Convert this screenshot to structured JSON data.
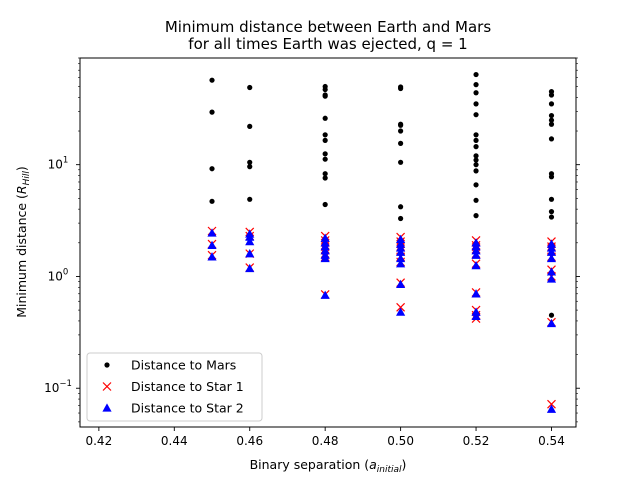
{
  "chart_data": {
    "type": "scatter",
    "title_line1": "Minimum distance between Earth and Mars",
    "title_line2": "for all times Earth was ejected, q = 1",
    "xlabel_main": "Binary separation (",
    "xlabel_var": "a",
    "xlabel_sub": "initial",
    "xlabel_close": ")",
    "ylabel_main": "Minimum distance (",
    "ylabel_var": "R",
    "ylabel_sub": "Hill",
    "ylabel_close": ")",
    "xlim": [
      0.415,
      0.5465
    ],
    "ylim": [
      0.045,
      90
    ],
    "yscale": "log",
    "x_ticks": [
      {
        "value": 0.42,
        "label": "0.42"
      },
      {
        "value": 0.44,
        "label": "0.44"
      },
      {
        "value": 0.46,
        "label": "0.46"
      },
      {
        "value": 0.48,
        "label": "0.48"
      },
      {
        "value": 0.5,
        "label": "0.50"
      },
      {
        "value": 0.52,
        "label": "0.52"
      },
      {
        "value": 0.54,
        "label": "0.54"
      }
    ],
    "y_ticks": [
      {
        "value": 0.1,
        "base": "10",
        "exp": "−1"
      },
      {
        "value": 1,
        "base": "10",
        "exp": "0"
      },
      {
        "value": 10,
        "base": "10",
        "exp": "1"
      }
    ],
    "legend_position": "lower-left",
    "series": [
      {
        "name": "Distance to Mars",
        "marker": "dot",
        "color": "#000000",
        "points": [
          [
            0.45,
            57
          ],
          [
            0.45,
            29.5
          ],
          [
            0.45,
            9.2
          ],
          [
            0.45,
            4.7
          ],
          [
            0.46,
            49
          ],
          [
            0.46,
            22
          ],
          [
            0.46,
            10.5
          ],
          [
            0.46,
            9.6
          ],
          [
            0.46,
            4.9
          ],
          [
            0.48,
            50
          ],
          [
            0.48,
            47
          ],
          [
            0.48,
            42
          ],
          [
            0.48,
            41
          ],
          [
            0.48,
            26
          ],
          [
            0.48,
            18.5
          ],
          [
            0.48,
            16.5
          ],
          [
            0.48,
            12.5
          ],
          [
            0.48,
            11.2
          ],
          [
            0.48,
            8.3
          ],
          [
            0.48,
            7.6
          ],
          [
            0.48,
            4.4
          ],
          [
            0.5,
            49.5
          ],
          [
            0.5,
            48
          ],
          [
            0.5,
            23
          ],
          [
            0.5,
            22.5
          ],
          [
            0.5,
            20
          ],
          [
            0.5,
            15.5
          ],
          [
            0.5,
            10.5
          ],
          [
            0.5,
            4.2
          ],
          [
            0.5,
            3.3
          ],
          [
            0.52,
            64
          ],
          [
            0.52,
            52
          ],
          [
            0.52,
            44
          ],
          [
            0.52,
            35
          ],
          [
            0.52,
            28
          ],
          [
            0.52,
            18.5
          ],
          [
            0.52,
            16.5
          ],
          [
            0.52,
            14.5
          ],
          [
            0.52,
            12
          ],
          [
            0.52,
            11
          ],
          [
            0.52,
            10
          ],
          [
            0.52,
            8.8
          ],
          [
            0.52,
            6.6
          ],
          [
            0.52,
            4.8
          ],
          [
            0.52,
            3.5
          ],
          [
            0.54,
            45
          ],
          [
            0.54,
            42
          ],
          [
            0.54,
            35
          ],
          [
            0.54,
            27.5
          ],
          [
            0.54,
            25
          ],
          [
            0.54,
            23
          ],
          [
            0.54,
            17
          ],
          [
            0.54,
            8.3
          ],
          [
            0.54,
            7.8
          ],
          [
            0.54,
            4.9
          ],
          [
            0.54,
            3.8
          ],
          [
            0.54,
            3.4
          ],
          [
            0.54,
            0.45
          ]
        ]
      },
      {
        "name": "Distance to Star 1",
        "marker": "x",
        "color": "#ff0000",
        "points": [
          [
            0.45,
            2.55
          ],
          [
            0.45,
            1.95
          ],
          [
            0.45,
            1.55
          ],
          [
            0.46,
            2.5
          ],
          [
            0.46,
            2.3
          ],
          [
            0.46,
            1.6
          ],
          [
            0.46,
            1.2
          ],
          [
            0.48,
            2.3
          ],
          [
            0.48,
            2.1
          ],
          [
            0.48,
            1.9
          ],
          [
            0.48,
            1.75
          ],
          [
            0.48,
            1.6
          ],
          [
            0.48,
            1.5
          ],
          [
            0.48,
            0.69
          ],
          [
            0.5,
            2.25
          ],
          [
            0.5,
            2.05
          ],
          [
            0.5,
            1.85
          ],
          [
            0.5,
            1.7
          ],
          [
            0.5,
            1.5
          ],
          [
            0.5,
            1.35
          ],
          [
            0.5,
            0.88
          ],
          [
            0.5,
            0.53
          ],
          [
            0.52,
            2.1
          ],
          [
            0.52,
            1.9
          ],
          [
            0.52,
            1.75
          ],
          [
            0.52,
            1.6
          ],
          [
            0.52,
            1.3
          ],
          [
            0.52,
            0.72
          ],
          [
            0.52,
            0.5
          ],
          [
            0.52,
            0.45
          ],
          [
            0.52,
            0.42
          ],
          [
            0.54,
            2.05
          ],
          [
            0.54,
            1.85
          ],
          [
            0.54,
            1.7
          ],
          [
            0.54,
            1.5
          ],
          [
            0.54,
            1.15
          ],
          [
            0.54,
            1.0
          ],
          [
            0.54,
            0.39
          ],
          [
            0.54,
            0.072
          ]
        ]
      },
      {
        "name": "Distance to Star 2",
        "marker": "triangle",
        "color": "#0000ff",
        "points": [
          [
            0.45,
            2.45
          ],
          [
            0.45,
            1.9
          ],
          [
            0.45,
            1.5
          ],
          [
            0.46,
            2.4
          ],
          [
            0.46,
            2.25
          ],
          [
            0.46,
            2.05
          ],
          [
            0.46,
            1.6
          ],
          [
            0.46,
            1.18
          ],
          [
            0.48,
            2.2
          ],
          [
            0.48,
            2.0
          ],
          [
            0.48,
            1.85
          ],
          [
            0.48,
            1.7
          ],
          [
            0.48,
            1.55
          ],
          [
            0.48,
            1.45
          ],
          [
            0.48,
            0.68
          ],
          [
            0.5,
            2.15
          ],
          [
            0.5,
            1.95
          ],
          [
            0.5,
            1.8
          ],
          [
            0.5,
            1.65
          ],
          [
            0.5,
            1.45
          ],
          [
            0.5,
            1.3
          ],
          [
            0.5,
            0.85
          ],
          [
            0.5,
            0.48
          ],
          [
            0.52,
            2.0
          ],
          [
            0.52,
            1.85
          ],
          [
            0.52,
            1.7
          ],
          [
            0.52,
            1.55
          ],
          [
            0.52,
            1.25
          ],
          [
            0.52,
            0.7
          ],
          [
            0.52,
            0.48
          ],
          [
            0.52,
            0.44
          ],
          [
            0.54,
            1.95
          ],
          [
            0.54,
            1.8
          ],
          [
            0.54,
            1.65
          ],
          [
            0.54,
            1.45
          ],
          [
            0.54,
            1.1
          ],
          [
            0.54,
            0.95
          ],
          [
            0.54,
            0.38
          ],
          [
            0.54,
            0.065
          ]
        ]
      }
    ]
  }
}
